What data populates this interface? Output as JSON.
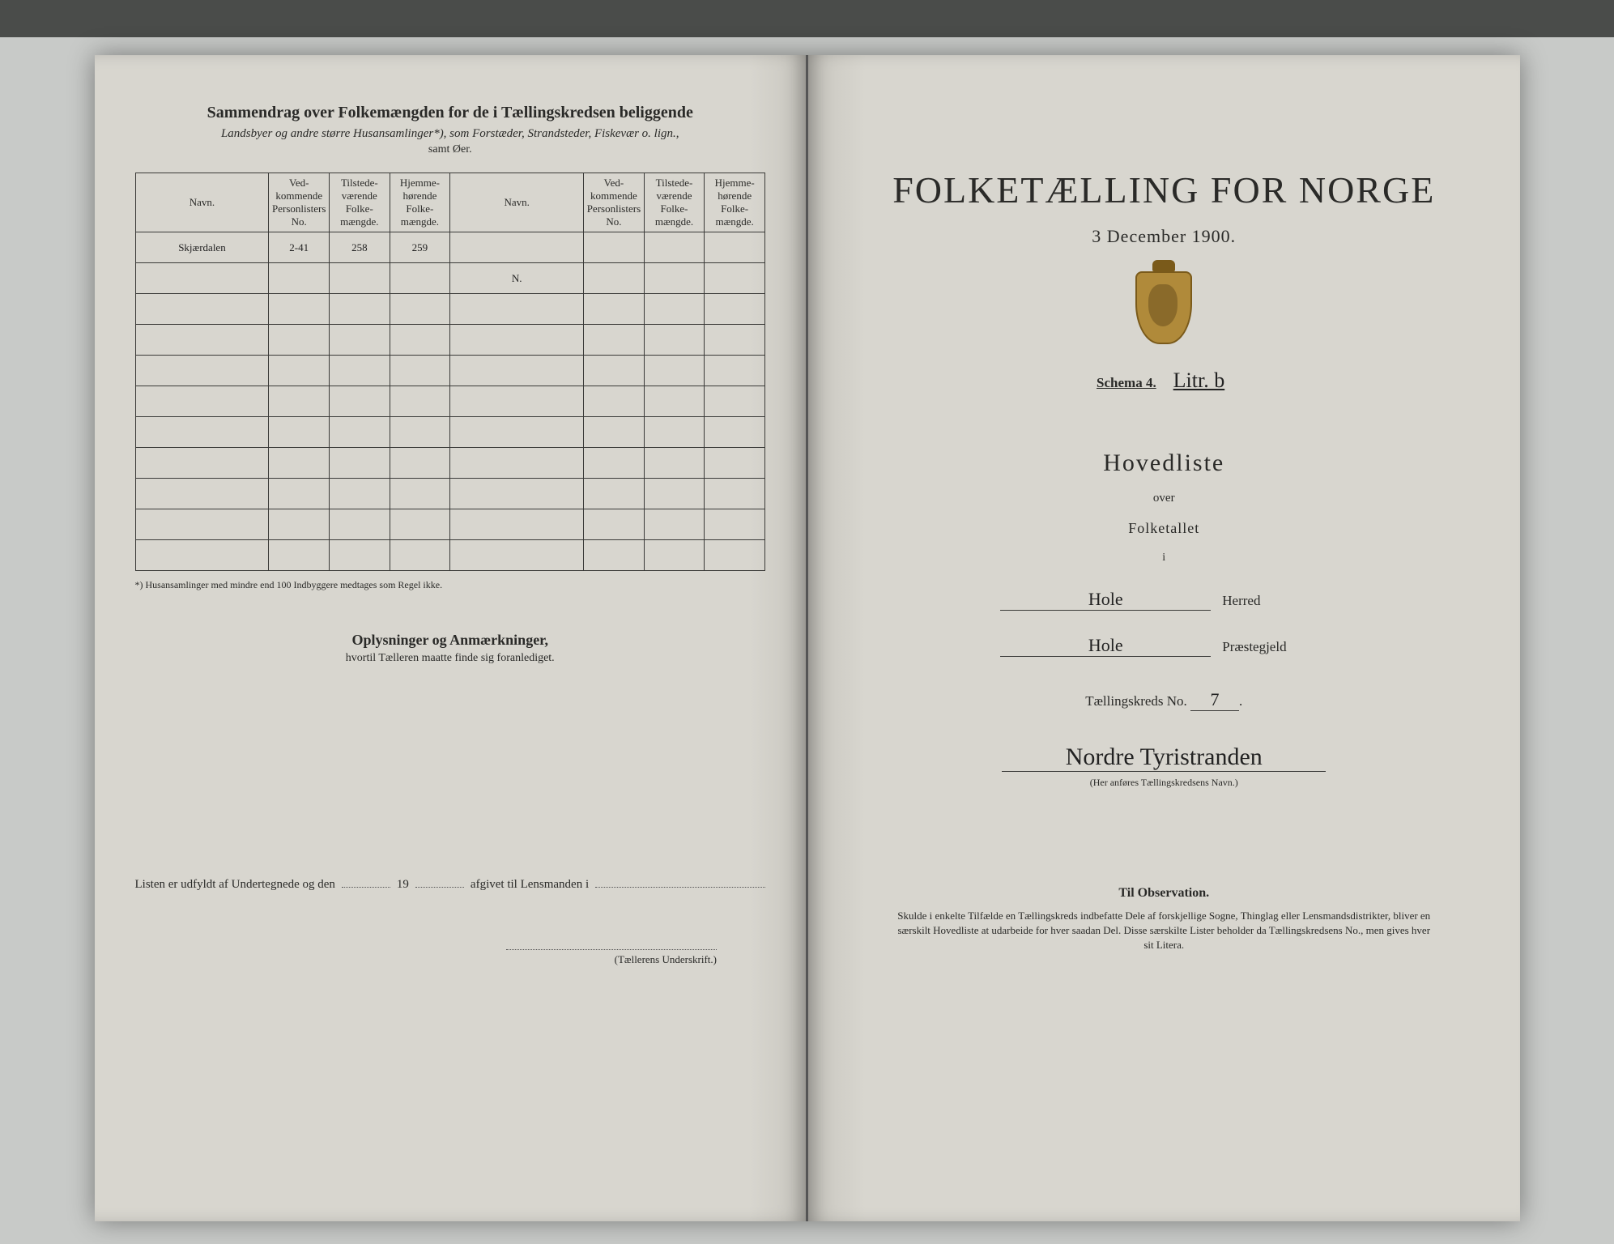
{
  "background_color": "#c8cac8",
  "page_color": "#d8d6cf",
  "ink_color": "#2a2a28",
  "left": {
    "title": "Sammendrag over Folkemængden for de i Tællingskredsen beliggende",
    "subtitle": "Landsbyer og andre større Husansamlinger*), som Forstæder, Strandsteder, Fiskevær o. lign.,",
    "subtitle2": "samt Øer.",
    "columns": {
      "navn": "Navn.",
      "personlister": "Ved-\nkommende\nPersonlisters\nNo.",
      "tilstede": "Tilstede-\nværende\nFolke-\nmængde.",
      "hjemme": "Hjemme-\nhørende\nFolke-\nmængde."
    },
    "rows": [
      {
        "navn_hand": "Skjærdalen",
        "no": "2-41",
        "tilstede": "258",
        "hjemme": "259",
        "navn2": "",
        "no2": "",
        "til2": "",
        "hj2": ""
      },
      {
        "navn_hand": "",
        "no": "",
        "tilstede": "",
        "hjemme": "",
        "navn2": "N.",
        "no2": "",
        "til2": "",
        "hj2": ""
      }
    ],
    "blank_rows": 9,
    "footnote": "*) Husansamlinger med mindre end 100 Indbyggere medtages som Regel ikke.",
    "section_title": "Oplysninger og Anmærkninger,",
    "section_sub": "hvortil Tælleren maatte finde sig foranlediget.",
    "fill_prefix": "Listen er udfyldt af Undertegnede og den",
    "fill_year": "19",
    "fill_suffix": "afgivet til Lensmanden i",
    "signature_label": "(Tællerens Underskrift.)"
  },
  "right": {
    "title": "FOLKETÆLLING FOR NORGE",
    "date": "3 December 1900.",
    "schema_label": "Schema 4.",
    "schema_hand": "Litr. b",
    "hovedliste": "Hovedliste",
    "over": "over",
    "folketallet": "Folketallet",
    "i": "i",
    "herred_hand": "Hole",
    "herred_label": "Herred",
    "prestegjeld_hand": "Hole",
    "prestegjeld_label": "Præstegjeld",
    "kreds_label": "Tællingskreds No.",
    "kreds_no": "7",
    "kreds_name": "Nordre Tyristranden",
    "kreds_hint": "(Her anføres Tællingskredsens Navn.)",
    "obs_title": "Til Observation.",
    "obs_text": "Skulde i enkelte Tilfælde en Tællingskreds indbefatte Dele af forskjellige Sogne, Thinglag eller Lensmandsdistrikter, bliver en særskilt Hovedliste at udarbeide for hver saadan Del. Disse særskilte Lister beholder da Tællingskredsens No., men gives hver sit Litera."
  }
}
